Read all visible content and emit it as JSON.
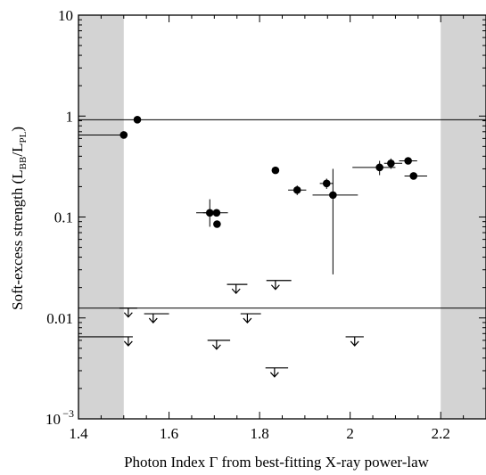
{
  "chart_data": {
    "type": "scatter",
    "title": "",
    "xlabel": "Photon Index Γ from best-fitting X-ray power-law",
    "ylabel": {
      "prefix": "Soft-excess strength (L",
      "sub1": "BB",
      "mid": "/L",
      "sub2": "PL",
      "suffix": ")"
    },
    "xlim": [
      1.4,
      2.3
    ],
    "ylim": [
      0.001,
      10
    ],
    "yscale": "log",
    "x_ticks": [
      {
        "value": 1.4,
        "label": "1.4"
      },
      {
        "value": 1.6,
        "label": "1.6"
      },
      {
        "value": 1.8,
        "label": "1.8"
      },
      {
        "value": 2.0,
        "label": "2"
      },
      {
        "value": 2.2,
        "label": "2.2"
      }
    ],
    "y_ticks": [
      {
        "value": 0.001,
        "base": "10",
        "exp": "−3"
      },
      {
        "value": 0.01,
        "base": "0.01",
        "exp": ""
      },
      {
        "value": 0.1,
        "base": "0.1",
        "exp": ""
      },
      {
        "value": 1,
        "base": "1",
        "exp": ""
      },
      {
        "value": 10,
        "base": "10",
        "exp": ""
      }
    ],
    "shaded_x_ranges": [
      [
        1.4,
        1.5
      ],
      [
        2.2,
        2.3
      ]
    ],
    "shade_color": "#d3d3d3",
    "horizontal_lines": [
      0.92,
      0.0125
    ],
    "measurements": [
      {
        "x": 1.5,
        "y": 0.65,
        "xerr": [
          0.1,
          0.0
        ]
      },
      {
        "x": 1.53,
        "y": 0.92
      },
      {
        "x": 1.69,
        "y": 0.11,
        "xerr": [
          0.03,
          0.015
        ],
        "yerr": [
          0.08,
          0.15
        ]
      },
      {
        "x": 1.705,
        "y": 0.11,
        "xerr": [
          0.03,
          0.025
        ]
      },
      {
        "x": 1.706,
        "y": 0.085
      },
      {
        "x": 1.835,
        "y": 0.29
      },
      {
        "x": 1.883,
        "y": 0.185,
        "xerr": [
          0.02,
          0.02
        ],
        "yerr": [
          0.165,
          0.205
        ]
      },
      {
        "x": 1.948,
        "y": 0.215,
        "xerr": [
          0.015,
          0.015
        ],
        "yerr": [
          0.19,
          0.24
        ]
      },
      {
        "x": 1.962,
        "y": 0.165,
        "xerr": [
          0.045,
          0.055
        ],
        "yerr": [
          0.027,
          0.3
        ]
      },
      {
        "x": 2.065,
        "y": 0.31,
        "xerr": [
          0.06,
          0.035
        ],
        "yerr": [
          0.26,
          0.36
        ]
      },
      {
        "x": 2.09,
        "y": 0.34,
        "xerr": [
          0.015,
          0.025
        ],
        "yerr": [
          0.3,
          0.38
        ]
      },
      {
        "x": 2.128,
        "y": 0.36,
        "xerr": [
          0.02,
          0.02
        ]
      },
      {
        "x": 2.14,
        "y": 0.255,
        "xerr": [
          0.02,
          0.03
        ]
      }
    ],
    "upper_limits": [
      {
        "x": 1.51,
        "y": 0.0125
      },
      {
        "x": 1.51,
        "y": 0.0065,
        "xerr": [
          0.11,
          0.01
        ]
      },
      {
        "x": 1.565,
        "y": 0.011,
        "xerr": [
          0.02,
          0.035
        ]
      },
      {
        "x": 1.705,
        "y": 0.006,
        "xerr": [
          0.02,
          0.03
        ]
      },
      {
        "x": 1.748,
        "y": 0.0215,
        "xerr": [
          0.02,
          0.025
        ]
      },
      {
        "x": 1.773,
        "y": 0.011,
        "xerr": [
          0.015,
          0.03
        ]
      },
      {
        "x": 1.835,
        "y": 0.0235,
        "xerr": [
          0.02,
          0.035
        ]
      },
      {
        "x": 1.833,
        "y": 0.0032,
        "xerr": [
          0.02,
          0.03
        ]
      },
      {
        "x": 2.01,
        "y": 0.0065,
        "xerr": [
          0.02,
          0.02
        ]
      }
    ]
  }
}
